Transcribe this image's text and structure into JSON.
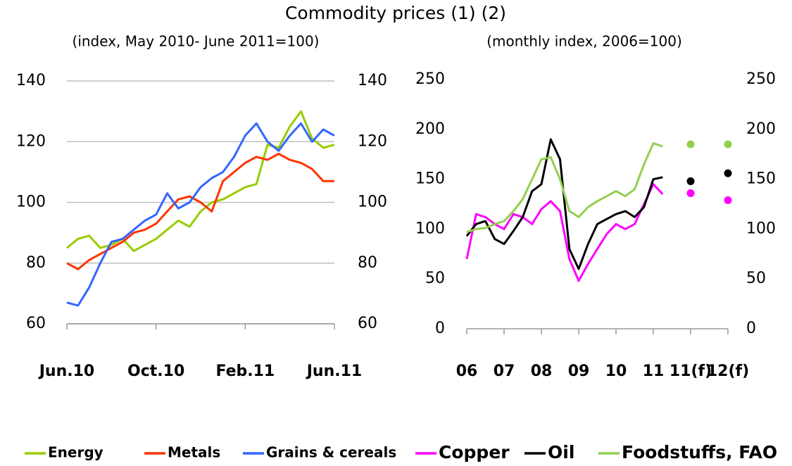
{
  "title": "Commodity prices (1) (2)",
  "chart_data": [
    {
      "type": "line",
      "subtitle": "(index, May 2010- June 2011=100)",
      "categories": [
        "Jun.10",
        null,
        null,
        null,
        null,
        null,
        null,
        null,
        "Oct.10",
        null,
        null,
        null,
        null,
        null,
        null,
        null,
        "Feb.11",
        null,
        null,
        null,
        null,
        null,
        null,
        null,
        "Jun.11"
      ],
      "series": [
        {
          "name": "Energy",
          "color": "#99cc00",
          "values": [
            85,
            88,
            89,
            85,
            86,
            88,
            84,
            86,
            88,
            91,
            94,
            92,
            97,
            100,
            101,
            103,
            105,
            106,
            119,
            118,
            125,
            130,
            121,
            118,
            119
          ]
        },
        {
          "name": "Metals",
          "color": "#ff3300",
          "values": [
            80,
            78,
            81,
            83,
            85,
            87,
            90,
            91,
            93,
            97,
            101,
            102,
            100,
            97,
            107,
            110,
            113,
            115,
            114,
            116,
            114,
            113,
            111,
            107,
            107
          ]
        },
        {
          "name": "Grains & cereals",
          "color": "#3366ff",
          "values": [
            67,
            66,
            72,
            80,
            87,
            88,
            91,
            94,
            96,
            103,
            98,
            100,
            105,
            108,
            110,
            115,
            122,
            126,
            120,
            117,
            122,
            126,
            120,
            124,
            122
          ]
        }
      ],
      "ylim": [
        60,
        140
      ],
      "yticks": [
        60,
        80,
        100,
        120,
        140
      ],
      "y2lim": [
        60,
        140
      ],
      "y2ticks": [
        60,
        80,
        100,
        120,
        140
      ],
      "grid": true
    },
    {
      "type": "line",
      "subtitle": "(monthly index, 2006=100)",
      "categories": [
        "06",
        null,
        null,
        null,
        "07",
        null,
        null,
        null,
        "08",
        null,
        null,
        null,
        "09",
        null,
        null,
        null,
        "10",
        null,
        null,
        null,
        "11",
        null,
        null,
        null,
        "11(f)",
        null,
        null,
        null,
        "12(f)"
      ],
      "series": [
        {
          "name": "Copper",
          "color": "#ff00ff",
          "values": [
            70,
            115,
            112,
            105,
            100,
            115,
            112,
            105,
            120,
            128,
            118,
            70,
            48,
            65,
            80,
            95,
            105,
            100,
            105,
            125,
            145,
            135,
            null,
            null,
            136,
            null,
            null,
            null,
            129
          ]
        },
        {
          "name": "Oil",
          "color": "#000000",
          "values": [
            93,
            105,
            108,
            90,
            85,
            98,
            112,
            138,
            145,
            190,
            170,
            80,
            60,
            85,
            105,
            110,
            115,
            118,
            112,
            122,
            150,
            152,
            null,
            null,
            148,
            null,
            null,
            null,
            156
          ]
        },
        {
          "name": "Foodstuffs, FAO",
          "color": "#92d050",
          "values": [
            97,
            100,
            101,
            105,
            108,
            118,
            130,
            150,
            170,
            172,
            150,
            118,
            112,
            122,
            128,
            133,
            138,
            133,
            140,
            165,
            186,
            183,
            null,
            null,
            185,
            null,
            null,
            null,
            185
          ]
        }
      ],
      "ylim": [
        0,
        250
      ],
      "yticks": [
        0,
        50,
        100,
        150,
        200,
        250
      ],
      "y2lim": [
        0,
        250
      ],
      "y2ticks": [
        0,
        50,
        100,
        150,
        200,
        250
      ],
      "grid": false
    }
  ]
}
